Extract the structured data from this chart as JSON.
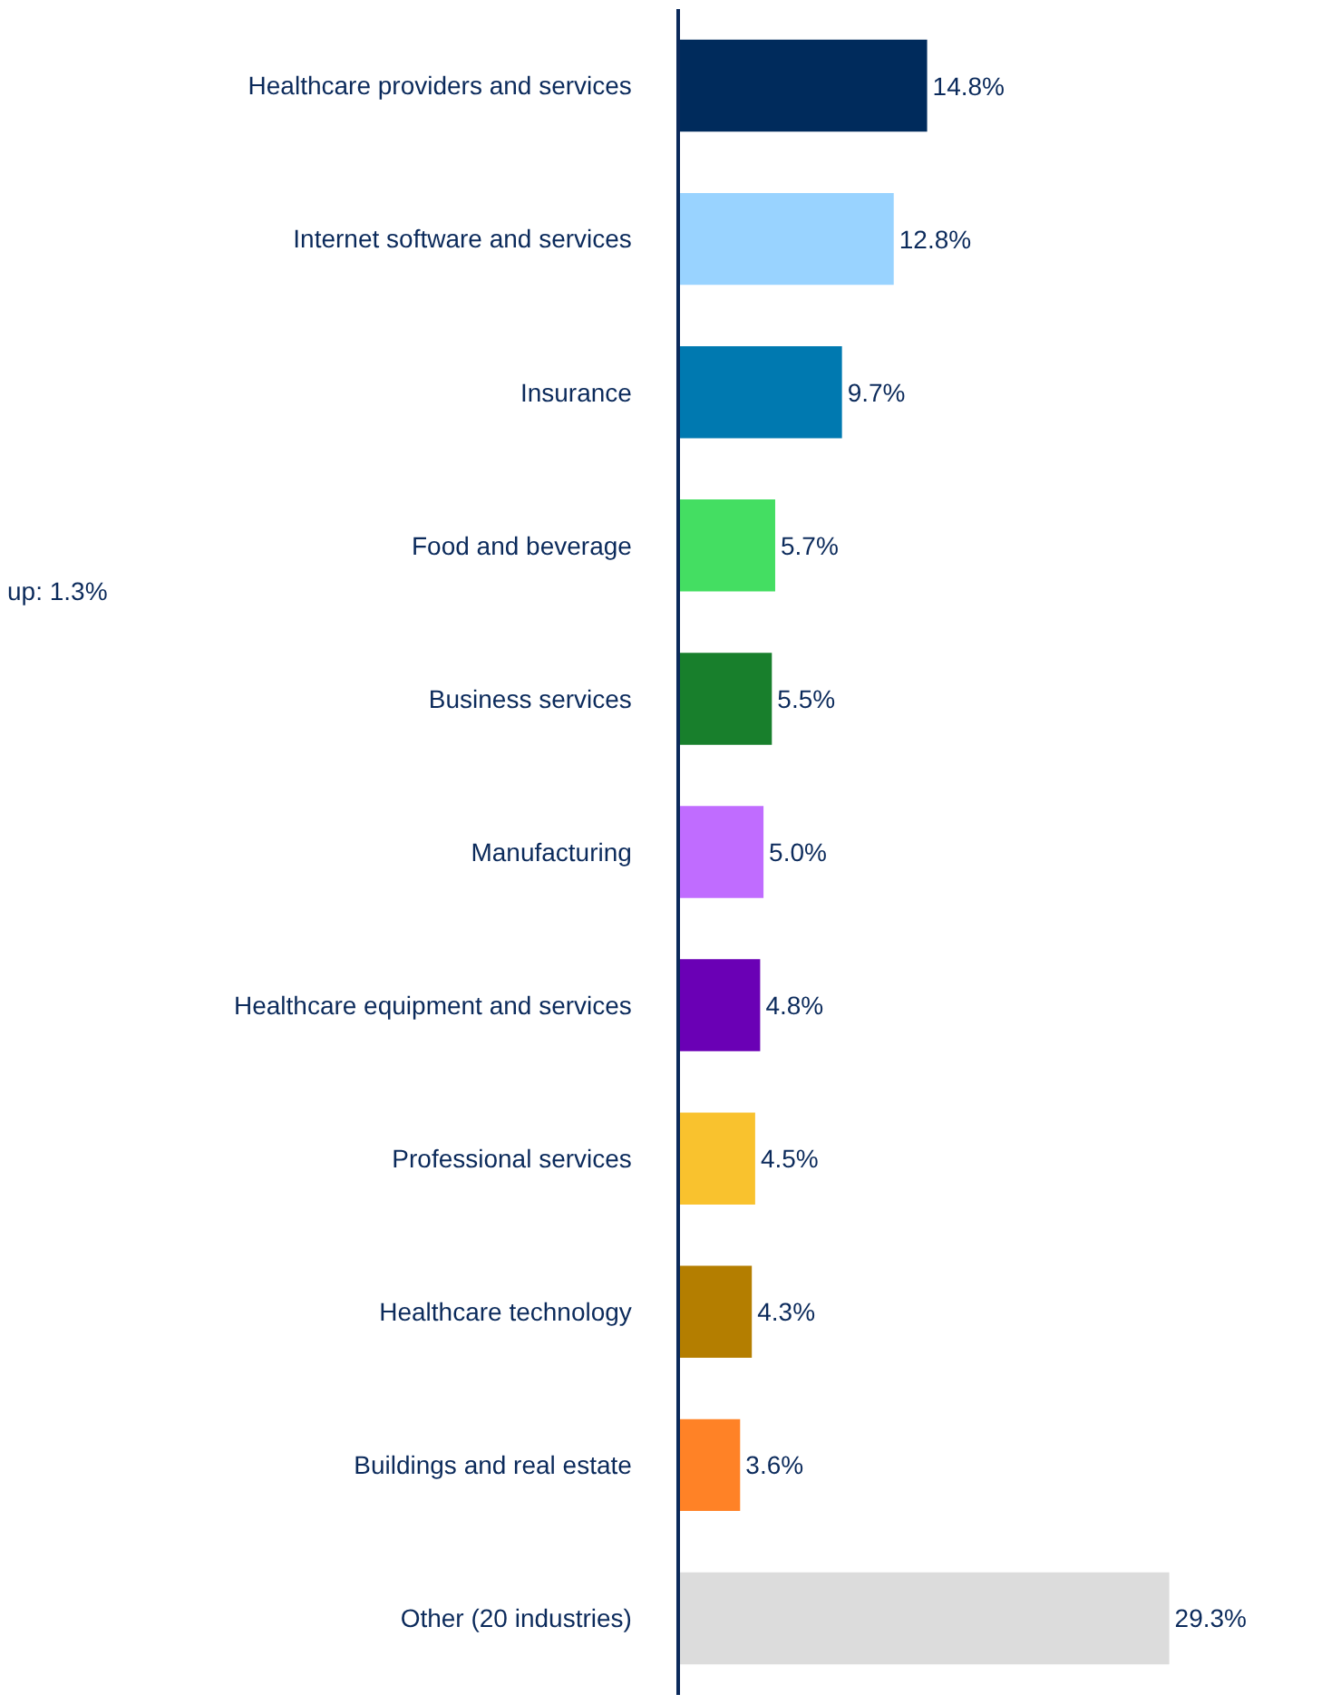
{
  "chart_data": {
    "type": "bar",
    "orientation": "horizontal",
    "categories": [
      "Healthcare providers and services",
      "Internet software and services",
      "Insurance",
      "Food and beverage",
      "Business services",
      "Manufacturing",
      "Healthcare equipment and services",
      "Professional services",
      "Healthcare technology",
      "Buildings and real estate",
      "Other (20 industries)"
    ],
    "values": [
      14.8,
      12.8,
      9.7,
      5.7,
      5.5,
      5.0,
      4.8,
      4.5,
      4.3,
      3.6,
      29.3
    ],
    "value_labels": [
      "14.8%",
      "12.8%",
      "9.7%",
      "5.7%",
      "5.5%",
      "5.0%",
      "4.8%",
      "4.5%",
      "4.3%",
      "3.6%",
      "29.3%"
    ],
    "colors": [
      "#002b5c",
      "#99d3ff",
      "#0079b0",
      "#44de62",
      "#187f2c",
      "#c06cff",
      "#6a00b5",
      "#f9c22e",
      "#b47e00",
      "#ff8226",
      "#dcdcdc"
    ],
    "tick_labels": "y",
    "annotations": [
      "up: 1.3%"
    ]
  }
}
